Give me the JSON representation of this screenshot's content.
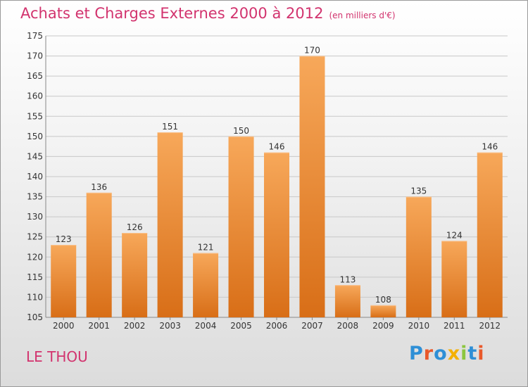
{
  "header": {
    "title": "Achats et Charges Externes 2000 à 2012",
    "unit": "(en milliers d'€)"
  },
  "footer": {
    "place": "LE THOU",
    "logo_text": "Proxiti",
    "logo_colors": [
      "#2e8fd6",
      "#e9592b",
      "#2e8fd6",
      "#f4b000",
      "#8cc63f",
      "#2e8fd6",
      "#e9592b"
    ]
  },
  "colors": {
    "bar_top": "#f7a85a",
    "bar_bottom": "#d86e17",
    "title": "#d2336e",
    "grid": "#c8c8c8",
    "axis_text": "#333333"
  },
  "chart_data": {
    "type": "bar",
    "categories": [
      "2000",
      "2001",
      "2002",
      "2003",
      "2004",
      "2005",
      "2006",
      "2007",
      "2008",
      "2009",
      "2010",
      "2011",
      "2012"
    ],
    "values": [
      123,
      136,
      126,
      151,
      121,
      150,
      146,
      170,
      113,
      108,
      135,
      124,
      146
    ],
    "title": "Achats et Charges Externes 2000 à 2012",
    "ylim": [
      105,
      175
    ],
    "yticks": [
      105,
      110,
      115,
      120,
      125,
      130,
      135,
      140,
      145,
      150,
      155,
      160,
      165,
      170,
      175
    ],
    "grid": true
  }
}
